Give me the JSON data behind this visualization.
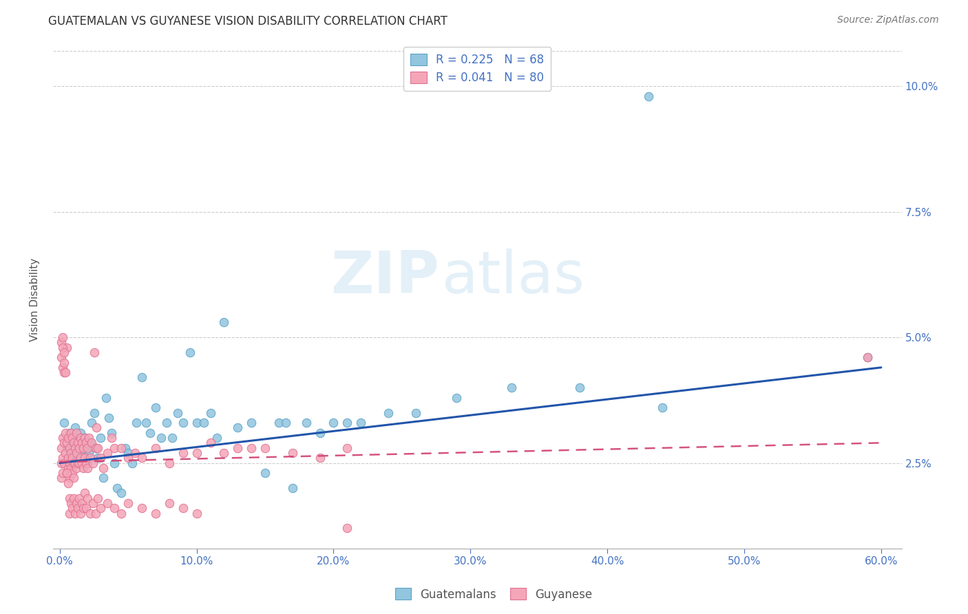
{
  "title": "GUATEMALAN VS GUYANESE VISION DISABILITY CORRELATION CHART",
  "source": "Source: ZipAtlas.com",
  "ylabel": "Vision Disability",
  "xlabel_ticks": [
    "0.0%",
    "10.0%",
    "20.0%",
    "30.0%",
    "40.0%",
    "50.0%",
    "60.0%"
  ],
  "ylabel_ticks_right": [
    "2.5%",
    "5.0%",
    "7.5%",
    "10.0%"
  ],
  "x_min": -0.005,
  "x_max": 0.615,
  "y_min": 0.008,
  "y_max": 0.107,
  "guatemalan_color": "#92C5DE",
  "guatemalan_edge_color": "#5BA3C9",
  "guyanese_color": "#F4A6B8",
  "guyanese_edge_color": "#E07090",
  "trend_guatemalan_color": "#2255AA",
  "trend_guyanese_color": "#D04070",
  "legend_label_1": "R = 0.225   N = 68",
  "legend_label_2": "R = 0.041   N = 80",
  "bottom_label_1": "Guatemalans",
  "bottom_label_2": "Guyanese",
  "watermark_zip": "ZIP",
  "watermark_atlas": "atlas",
  "background_color": "#ffffff",
  "grid_color": "#cccccc",
  "title_color": "#333333",
  "legend_text_color": "#4472C4",
  "tick_color_right": "#4472C4",
  "x_tick_vals": [
    0.0,
    0.1,
    0.2,
    0.3,
    0.4,
    0.5,
    0.6
  ],
  "y_tick_vals": [
    0.025,
    0.05,
    0.075,
    0.1
  ],
  "guat_trend_x0": 0.0,
  "guat_trend_x1": 0.6,
  "guat_trend_y0": 0.025,
  "guat_trend_y1": 0.044,
  "guya_trend_x0": 0.0,
  "guya_trend_x1": 0.6,
  "guya_trend_y0": 0.0252,
  "guya_trend_y1": 0.029,
  "guat_x": [
    0.003,
    0.005,
    0.007,
    0.008,
    0.009,
    0.01,
    0.011,
    0.012,
    0.013,
    0.014,
    0.015,
    0.016,
    0.017,
    0.018,
    0.019,
    0.02,
    0.021,
    0.022,
    0.023,
    0.025,
    0.027,
    0.028,
    0.03,
    0.032,
    0.034,
    0.036,
    0.038,
    0.04,
    0.042,
    0.045,
    0.048,
    0.05,
    0.053,
    0.056,
    0.06,
    0.063,
    0.066,
    0.07,
    0.074,
    0.078,
    0.082,
    0.086,
    0.09,
    0.095,
    0.1,
    0.105,
    0.11,
    0.115,
    0.12,
    0.13,
    0.14,
    0.15,
    0.16,
    0.165,
    0.17,
    0.18,
    0.19,
    0.2,
    0.21,
    0.22,
    0.24,
    0.26,
    0.29,
    0.33,
    0.38,
    0.43,
    0.44,
    0.59
  ],
  "guat_y": [
    0.033,
    0.028,
    0.031,
    0.026,
    0.029,
    0.027,
    0.032,
    0.03,
    0.028,
    0.025,
    0.031,
    0.027,
    0.026,
    0.03,
    0.028,
    0.025,
    0.027,
    0.029,
    0.033,
    0.035,
    0.028,
    0.026,
    0.03,
    0.022,
    0.038,
    0.034,
    0.031,
    0.025,
    0.02,
    0.019,
    0.028,
    0.027,
    0.025,
    0.033,
    0.042,
    0.033,
    0.031,
    0.036,
    0.03,
    0.033,
    0.03,
    0.035,
    0.033,
    0.047,
    0.033,
    0.033,
    0.035,
    0.03,
    0.053,
    0.032,
    0.033,
    0.023,
    0.033,
    0.033,
    0.02,
    0.033,
    0.031,
    0.033,
    0.033,
    0.033,
    0.035,
    0.035,
    0.038,
    0.04,
    0.04,
    0.098,
    0.036,
    0.046
  ],
  "guya_x": [
    0.001,
    0.001,
    0.001,
    0.002,
    0.002,
    0.002,
    0.003,
    0.003,
    0.004,
    0.004,
    0.005,
    0.005,
    0.005,
    0.006,
    0.006,
    0.006,
    0.007,
    0.007,
    0.007,
    0.008,
    0.008,
    0.008,
    0.009,
    0.009,
    0.009,
    0.01,
    0.01,
    0.01,
    0.011,
    0.011,
    0.012,
    0.012,
    0.012,
    0.013,
    0.013,
    0.014,
    0.014,
    0.015,
    0.015,
    0.016,
    0.016,
    0.017,
    0.017,
    0.018,
    0.018,
    0.019,
    0.019,
    0.02,
    0.02,
    0.021,
    0.022,
    0.023,
    0.024,
    0.025,
    0.026,
    0.027,
    0.028,
    0.03,
    0.032,
    0.035,
    0.038,
    0.04,
    0.045,
    0.05,
    0.055,
    0.06,
    0.07,
    0.08,
    0.09,
    0.1,
    0.11,
    0.12,
    0.13,
    0.14,
    0.15,
    0.17,
    0.19,
    0.21,
    0.59,
    0.21
  ],
  "guya_y": [
    0.028,
    0.025,
    0.022,
    0.03,
    0.026,
    0.023,
    0.029,
    0.025,
    0.031,
    0.027,
    0.048,
    0.029,
    0.023,
    0.026,
    0.03,
    0.024,
    0.028,
    0.025,
    0.022,
    0.031,
    0.027,
    0.024,
    0.03,
    0.026,
    0.023,
    0.029,
    0.025,
    0.022,
    0.028,
    0.025,
    0.031,
    0.027,
    0.024,
    0.029,
    0.025,
    0.028,
    0.025,
    0.03,
    0.026,
    0.029,
    0.025,
    0.028,
    0.024,
    0.03,
    0.026,
    0.029,
    0.025,
    0.028,
    0.024,
    0.03,
    0.026,
    0.029,
    0.025,
    0.047,
    0.028,
    0.032,
    0.028,
    0.026,
    0.024,
    0.027,
    0.03,
    0.028,
    0.028,
    0.026,
    0.027,
    0.026,
    0.028,
    0.025,
    0.027,
    0.027,
    0.029,
    0.027,
    0.028,
    0.028,
    0.028,
    0.027,
    0.026,
    0.028,
    0.046,
    0.012
  ],
  "guya_x_extra": [
    0.001,
    0.001,
    0.002,
    0.002,
    0.002,
    0.003,
    0.003,
    0.003,
    0.004,
    0.005,
    0.006,
    0.007,
    0.007,
    0.008,
    0.009,
    0.01,
    0.011,
    0.012,
    0.013,
    0.014,
    0.015,
    0.016,
    0.017,
    0.018,
    0.019,
    0.02,
    0.022,
    0.024,
    0.026,
    0.028,
    0.03,
    0.035,
    0.04,
    0.045,
    0.05,
    0.06,
    0.07,
    0.08,
    0.09,
    0.1
  ],
  "guya_y_extra": [
    0.049,
    0.046,
    0.048,
    0.044,
    0.05,
    0.045,
    0.043,
    0.047,
    0.043,
    0.023,
    0.021,
    0.018,
    0.015,
    0.017,
    0.016,
    0.018,
    0.015,
    0.017,
    0.016,
    0.018,
    0.015,
    0.017,
    0.016,
    0.019,
    0.016,
    0.018,
    0.015,
    0.017,
    0.015,
    0.018,
    0.016,
    0.017,
    0.016,
    0.015,
    0.017,
    0.016,
    0.015,
    0.017,
    0.016,
    0.015
  ]
}
